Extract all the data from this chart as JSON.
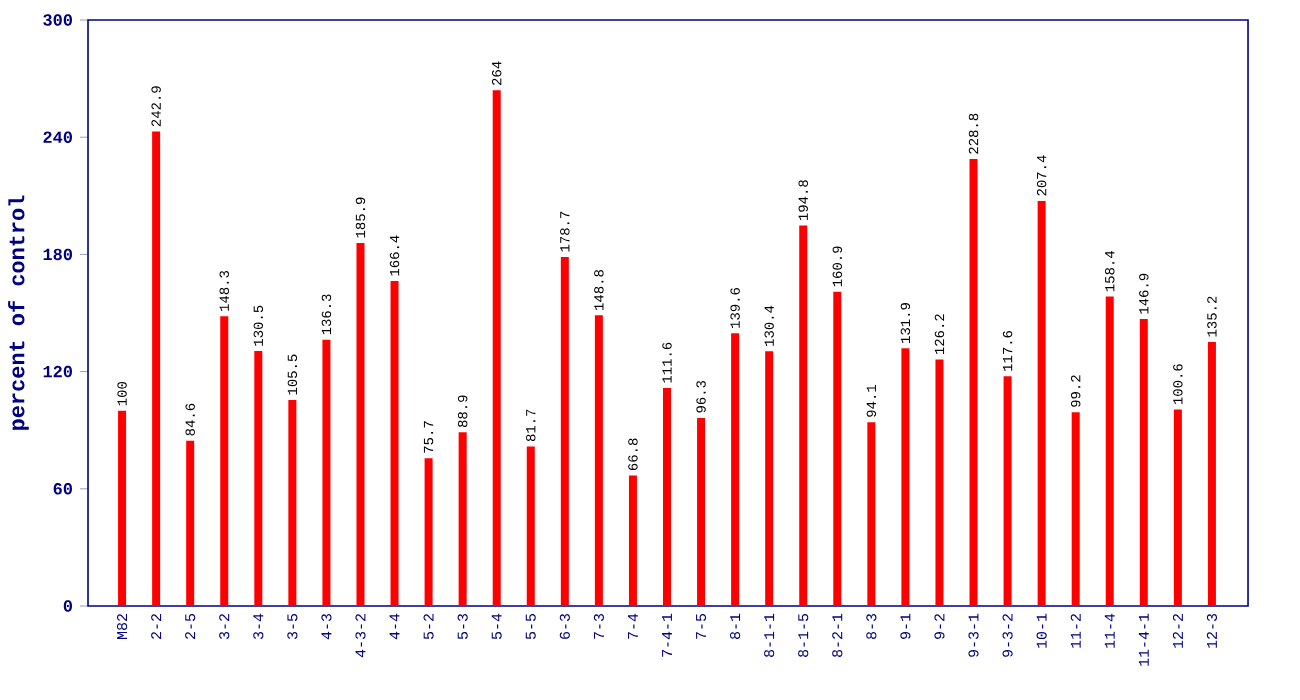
{
  "chart_data": {
    "type": "bar",
    "ylabel": "percent of control",
    "categories": [
      "M82",
      "2-2",
      "2-5",
      "3-2",
      "3-4",
      "3-5",
      "4-3",
      "4-3-2",
      "4-4",
      "5-2",
      "5-3",
      "5-4",
      "5-5",
      "6-3",
      "7-3",
      "7-4",
      "7-4-1",
      "7-5",
      "8-1",
      "8-1-1",
      "8-1-5",
      "8-2-1",
      "8-3",
      "9-1",
      "9-2",
      "9-3-1",
      "9-3-2",
      "10-1",
      "11-2",
      "11-4",
      "11-4-1",
      "12-2",
      "12-3"
    ],
    "values": [
      100,
      242.9,
      84.6,
      148.3,
      130.5,
      105.5,
      136.3,
      185.9,
      166.4,
      75.7,
      88.9,
      264,
      81.7,
      178.7,
      148.8,
      66.8,
      111.6,
      96.3,
      139.6,
      130.4,
      194.8,
      160.9,
      94.1,
      131.9,
      126.2,
      228.8,
      117.6,
      207.4,
      99.2,
      158.4,
      146.9,
      100.6,
      135.2
    ],
    "color": "#ff0000",
    "ylim": [
      0,
      300
    ],
    "yticks": [
      0,
      60,
      120,
      180,
      240,
      300
    ],
    "data_labels": true
  }
}
